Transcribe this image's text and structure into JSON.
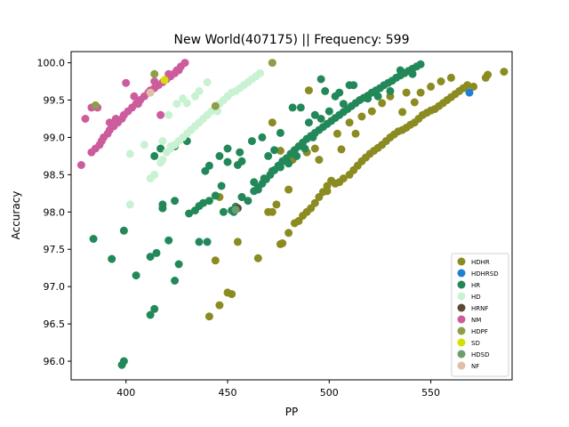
{
  "chart_data": {
    "type": "scatter",
    "title": "New World(407175) || Frequency: 599",
    "xlabel": "PP",
    "ylabel": "Accuracy",
    "xlim": [
      373,
      590
    ],
    "ylim": [
      95.75,
      100.15
    ],
    "xticks": [
      "400",
      "450",
      "500",
      "550"
    ],
    "xtick_values": [
      400,
      450,
      500,
      550
    ],
    "yticks": [
      "96.0",
      "96.5",
      "97.0",
      "97.5",
      "98.0",
      "98.5",
      "99.0",
      "99.5",
      "100.0"
    ],
    "ytick_values": [
      96.0,
      96.5,
      97.0,
      97.5,
      98.0,
      98.5,
      99.0,
      99.5,
      100.0
    ],
    "legend_position": "lower-right",
    "grid": false,
    "series": [
      {
        "name": "HDHR",
        "color": "#8b8b22",
        "points": [
          [
            441,
            96.6
          ],
          [
            446,
            96.75
          ],
          [
            450,
            96.92
          ],
          [
            452,
            96.9
          ],
          [
            444,
            97.35
          ],
          [
            455,
            97.6
          ],
          [
            465,
            97.38
          ],
          [
            476,
            97.57
          ],
          [
            477,
            97.58
          ],
          [
            480,
            97.72
          ],
          [
            446,
            98.2
          ],
          [
            457,
            98.2
          ],
          [
            470,
            98.0
          ],
          [
            472,
            98.0
          ],
          [
            474,
            98.1
          ],
          [
            483,
            97.85
          ],
          [
            485,
            97.88
          ],
          [
            487,
            97.95
          ],
          [
            489,
            98.0
          ],
          [
            491,
            98.05
          ],
          [
            493,
            98.12
          ],
          [
            495,
            98.2
          ],
          [
            497,
            98.27
          ],
          [
            499,
            98.35
          ],
          [
            501,
            98.42
          ],
          [
            503,
            98.38
          ],
          [
            505,
            98.4
          ],
          [
            507,
            98.45
          ],
          [
            510,
            98.5
          ],
          [
            512,
            98.56
          ],
          [
            514,
            98.62
          ],
          [
            516,
            98.68
          ],
          [
            518,
            98.73
          ],
          [
            520,
            98.78
          ],
          [
            522,
            98.82
          ],
          [
            524,
            98.86
          ],
          [
            526,
            98.9
          ],
          [
            528,
            98.95
          ],
          [
            530,
            99.0
          ],
          [
            532,
            99.04
          ],
          [
            534,
            99.08
          ],
          [
            536,
            99.1
          ],
          [
            538,
            99.13
          ],
          [
            540,
            99.17
          ],
          [
            542,
            99.2
          ],
          [
            544,
            99.25
          ],
          [
            546,
            99.3
          ],
          [
            548,
            99.33
          ],
          [
            550,
            99.36
          ],
          [
            552,
            99.38
          ],
          [
            554,
            99.42
          ],
          [
            556,
            99.46
          ],
          [
            558,
            99.5
          ],
          [
            560,
            99.54
          ],
          [
            562,
            99.58
          ],
          [
            564,
            99.62
          ],
          [
            566,
            99.66
          ],
          [
            568,
            99.7
          ],
          [
            571,
            99.68
          ],
          [
            577,
            99.8
          ],
          [
            578,
            99.84
          ],
          [
            586,
            99.88
          ],
          [
            472,
            99.2
          ],
          [
            476,
            98.82
          ],
          [
            480,
            98.3
          ],
          [
            482,
            98.7
          ],
          [
            490,
            99.63
          ],
          [
            493,
            98.85
          ],
          [
            495,
            98.7
          ],
          [
            499,
            98.28
          ],
          [
            504,
            99.05
          ],
          [
            506,
            98.84
          ],
          [
            510,
            99.2
          ],
          [
            513,
            99.05
          ],
          [
            516,
            99.28
          ],
          [
            521,
            99.35
          ],
          [
            526,
            99.46
          ],
          [
            530,
            99.55
          ],
          [
            536,
            99.34
          ],
          [
            538,
            99.6
          ],
          [
            542,
            99.47
          ],
          [
            545,
            99.6
          ],
          [
            550,
            99.68
          ],
          [
            555,
            99.75
          ],
          [
            560,
            99.8
          ],
          [
            489,
            98.8
          ]
        ]
      },
      {
        "name": "HDHRSD",
        "color": "#1f7fd4",
        "points": [
          [
            569,
            99.6
          ]
        ]
      },
      {
        "name": "HR",
        "color": "#22885a",
        "points": [
          [
            398,
            95.95
          ],
          [
            399,
            96.0
          ],
          [
            412,
            96.62
          ],
          [
            414,
            96.7
          ],
          [
            405,
            97.15
          ],
          [
            424,
            97.08
          ],
          [
            393,
            97.37
          ],
          [
            384,
            97.64
          ],
          [
            399,
            97.75
          ],
          [
            412,
            97.4
          ],
          [
            415,
            97.45
          ],
          [
            421,
            97.62
          ],
          [
            426,
            97.3
          ],
          [
            436,
            97.6
          ],
          [
            440,
            97.6
          ],
          [
            418,
            98.05
          ],
          [
            418,
            98.1
          ],
          [
            424,
            98.15
          ],
          [
            431,
            97.98
          ],
          [
            434,
            98.02
          ],
          [
            436,
            98.08
          ],
          [
            438,
            98.12
          ],
          [
            441,
            98.15
          ],
          [
            444,
            98.22
          ],
          [
            448,
            98.0
          ],
          [
            452,
            98.02
          ],
          [
            454,
            98.07
          ],
          [
            457,
            98.2
          ],
          [
            460,
            98.15
          ],
          [
            463,
            98.28
          ],
          [
            465,
            98.33
          ],
          [
            467,
            98.38
          ],
          [
            469,
            98.44
          ],
          [
            471,
            98.5
          ],
          [
            473,
            98.56
          ],
          [
            475,
            98.62
          ],
          [
            477,
            98.68
          ],
          [
            479,
            98.72
          ],
          [
            481,
            98.78
          ],
          [
            483,
            98.83
          ],
          [
            485,
            98.88
          ],
          [
            487,
            98.93
          ],
          [
            489,
            98.98
          ],
          [
            491,
            99.02
          ],
          [
            493,
            99.06
          ],
          [
            495,
            99.1
          ],
          [
            497,
            99.14
          ],
          [
            499,
            99.18
          ],
          [
            501,
            99.22
          ],
          [
            503,
            99.26
          ],
          [
            505,
            99.3
          ],
          [
            507,
            99.34
          ],
          [
            509,
            99.38
          ],
          [
            511,
            99.42
          ],
          [
            513,
            99.46
          ],
          [
            515,
            99.5
          ],
          [
            517,
            99.53
          ],
          [
            519,
            99.56
          ],
          [
            521,
            99.6
          ],
          [
            523,
            99.63
          ],
          [
            525,
            99.66
          ],
          [
            527,
            99.7
          ],
          [
            529,
            99.73
          ],
          [
            531,
            99.76
          ],
          [
            533,
            99.8
          ],
          [
            535,
            99.83
          ],
          [
            537,
            99.86
          ],
          [
            539,
            99.89
          ],
          [
            541,
            99.92
          ],
          [
            543,
            99.95
          ],
          [
            545,
            99.98
          ],
          [
            414,
            98.75
          ],
          [
            417,
            98.85
          ],
          [
            424,
            98.88
          ],
          [
            430,
            98.95
          ],
          [
            439,
            98.55
          ],
          [
            441,
            98.62
          ],
          [
            447,
            98.35
          ],
          [
            450,
            98.67
          ],
          [
            450,
            98.85
          ],
          [
            455,
            98.63
          ],
          [
            457,
            98.68
          ],
          [
            462,
            98.95
          ],
          [
            467,
            99.0
          ],
          [
            470,
            98.75
          ],
          [
            473,
            98.83
          ],
          [
            476,
            99.06
          ],
          [
            482,
            99.4
          ],
          [
            486,
            99.4
          ],
          [
            490,
            99.2
          ],
          [
            493,
            99.3
          ],
          [
            498,
            99.62
          ],
          [
            503,
            99.55
          ],
          [
            507,
            99.45
          ],
          [
            512,
            99.7
          ],
          [
            519,
            99.52
          ],
          [
            524,
            99.55
          ],
          [
            530,
            99.62
          ],
          [
            535,
            99.9
          ],
          [
            541,
            99.85
          ],
          [
            463,
            98.4
          ],
          [
            465,
            98.3
          ],
          [
            468,
            98.45
          ],
          [
            472,
            98.55
          ],
          [
            476,
            98.6
          ],
          [
            480,
            98.65
          ],
          [
            484,
            98.75
          ],
          [
            488,
            98.85
          ],
          [
            492,
            99.0
          ],
          [
            496,
            99.25
          ],
          [
            500,
            99.35
          ],
          [
            505,
            99.6
          ],
          [
            510,
            99.7
          ],
          [
            496,
            99.78
          ],
          [
            446,
            98.75
          ],
          [
            453,
            98.0
          ],
          [
            456,
            98.8
          ]
        ]
      },
      {
        "name": "HD",
        "color": "#c8f2d2",
        "points": [
          [
            402,
            98.1
          ],
          [
            402,
            98.78
          ],
          [
            409,
            98.9
          ],
          [
            412,
            98.45
          ],
          [
            414,
            98.5
          ],
          [
            417,
            98.66
          ],
          [
            418,
            98.7
          ],
          [
            420,
            98.8
          ],
          [
            422,
            98.85
          ],
          [
            424,
            98.9
          ],
          [
            426,
            98.95
          ],
          [
            428,
            99.0
          ],
          [
            430,
            99.05
          ],
          [
            432,
            99.1
          ],
          [
            434,
            99.15
          ],
          [
            436,
            99.2
          ],
          [
            438,
            99.25
          ],
          [
            440,
            99.3
          ],
          [
            442,
            99.35
          ],
          [
            444,
            99.4
          ],
          [
            446,
            99.45
          ],
          [
            448,
            99.5
          ],
          [
            450,
            99.55
          ],
          [
            452,
            99.6
          ],
          [
            454,
            99.62
          ],
          [
            456,
            99.66
          ],
          [
            458,
            99.7
          ],
          [
            460,
            99.74
          ],
          [
            462,
            99.78
          ],
          [
            464,
            99.82
          ],
          [
            466,
            99.86
          ],
          [
            421,
            99.3
          ],
          [
            425,
            99.45
          ],
          [
            428,
            99.52
          ],
          [
            430,
            99.46
          ],
          [
            434,
            99.55
          ],
          [
            436,
            99.62
          ],
          [
            440,
            99.74
          ],
          [
            445,
            99.35
          ],
          [
            418,
            98.95
          ],
          [
            422,
            98.88
          ]
        ]
      },
      {
        "name": "HRNF",
        "color": "#5a4a38",
        "points": [
          [
            455,
            98.05
          ]
        ]
      },
      {
        "name": "NM",
        "color": "#cc5c9c",
        "points": [
          [
            378,
            98.63
          ],
          [
            380,
            99.25
          ],
          [
            383,
            98.8
          ],
          [
            385,
            98.85
          ],
          [
            387,
            98.9
          ],
          [
            388,
            98.95
          ],
          [
            389,
            99.0
          ],
          [
            391,
            99.05
          ],
          [
            392,
            99.1
          ],
          [
            394,
            99.15
          ],
          [
            396,
            99.2
          ],
          [
            398,
            99.25
          ],
          [
            399,
            99.3
          ],
          [
            401,
            99.35
          ],
          [
            403,
            99.4
          ],
          [
            405,
            99.45
          ],
          [
            407,
            99.5
          ],
          [
            409,
            99.55
          ],
          [
            411,
            99.6
          ],
          [
            412,
            99.63
          ],
          [
            414,
            99.66
          ],
          [
            416,
            99.7
          ],
          [
            418,
            99.74
          ],
          [
            420,
            99.78
          ],
          [
            422,
            99.82
          ],
          [
            424,
            99.86
          ],
          [
            426,
            99.9
          ],
          [
            427,
            99.95
          ],
          [
            429,
            100.0
          ],
          [
            383,
            99.4
          ],
          [
            386,
            99.4
          ],
          [
            392,
            99.2
          ],
          [
            395,
            99.25
          ],
          [
            400,
            99.73
          ],
          [
            404,
            99.55
          ],
          [
            406,
            99.45
          ],
          [
            414,
            99.75
          ],
          [
            417,
            99.3
          ],
          [
            421,
            99.85
          ],
          [
            425,
            99.9
          ]
        ]
      },
      {
        "name": "HDPF",
        "color": "#8c9e4a",
        "points": [
          [
            385,
            99.43
          ],
          [
            414,
            99.85
          ],
          [
            444,
            99.42
          ],
          [
            472,
            100.0
          ]
        ]
      },
      {
        "name": "SD",
        "color": "#d4e000",
        "points": [
          [
            419,
            99.77
          ]
        ]
      },
      {
        "name": "HDSD",
        "color": "#6b9e6a",
        "points": [
          [
            454,
            98.03
          ]
        ]
      },
      {
        "name": "NF",
        "color": "#dfbfa8",
        "points": [
          [
            412,
            99.6
          ]
        ]
      }
    ]
  }
}
